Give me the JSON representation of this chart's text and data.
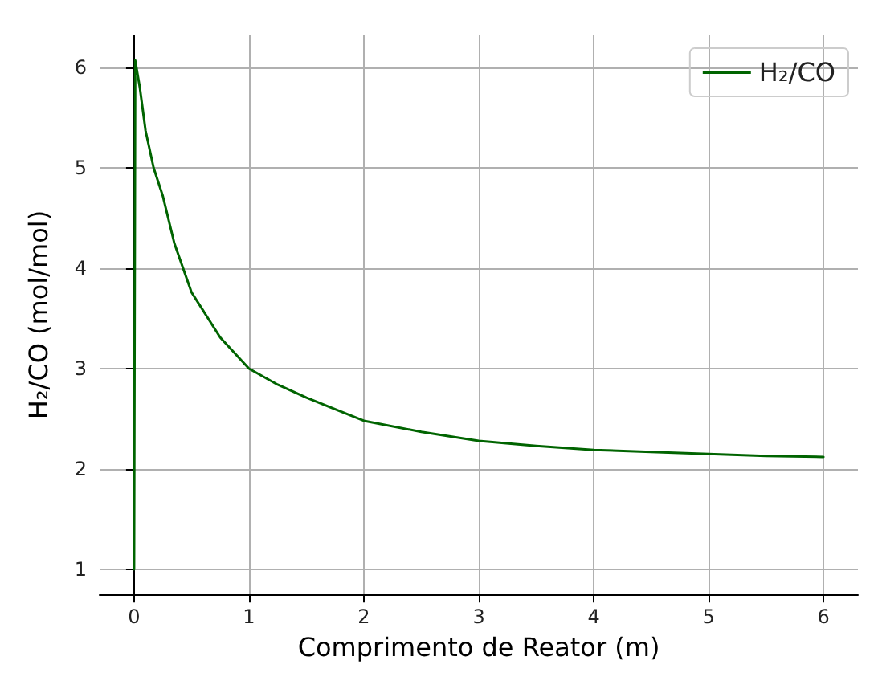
{
  "chart_data": {
    "type": "line",
    "xlabel": "Comprimento de Reator (m)",
    "ylabel": "H₂/CO (mol/mol)",
    "series": [
      {
        "name": "H₂/CO",
        "color": "#006400",
        "x": [
          0,
          0.01,
          0.05,
          0.1,
          0.17,
          0.25,
          0.35,
          0.5,
          0.75,
          1,
          1.25,
          1.5,
          2,
          2.5,
          3,
          3.5,
          4,
          4.5,
          5,
          5.5,
          6
        ],
        "values": [
          1,
          6.07,
          5.8,
          5.37,
          5.0,
          4.72,
          4.25,
          3.76,
          3.31,
          3.0,
          2.84,
          2.71,
          2.48,
          2.37,
          2.28,
          2.23,
          2.19,
          2.17,
          2.15,
          2.13,
          2.12
        ]
      }
    ],
    "xlim": [
      -0.3,
      6.3
    ],
    "xticks": [
      0,
      1,
      2,
      3,
      4,
      5,
      6
    ],
    "ylim": [
      0.75,
      6.32
    ],
    "yticks": [
      1,
      2,
      3,
      4,
      5,
      6
    ],
    "grid": true,
    "legend": "top right",
    "marker": "none",
    "line_style": "solid"
  }
}
